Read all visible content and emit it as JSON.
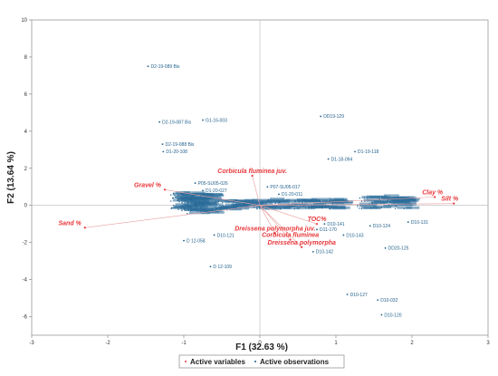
{
  "chart_data": {
    "type": "scatter",
    "xlabel": "F1 (32.63 %)",
    "ylabel": "F2 (13.64 %)",
    "xlim": [
      -3,
      3
    ],
    "ylim": [
      -7,
      10
    ],
    "xticks": [
      -3,
      -2,
      -1,
      0,
      1,
      2,
      3
    ],
    "yticks": [
      -6,
      -4,
      -2,
      0,
      2,
      4,
      6,
      8,
      10
    ],
    "grid": false,
    "legend": {
      "position": "bottom-center",
      "entries": [
        "Active variables",
        "Active observations"
      ]
    },
    "colors": {
      "variables": "#e8363a",
      "observations": "#1f5f8b"
    },
    "variables": [
      {
        "label": "Sand %",
        "x": -2.3,
        "y": -1.2
      },
      {
        "label": "Gravel %",
        "x": -1.25,
        "y": 0.85
      },
      {
        "label": "Corbicula fluminea juv.",
        "x": -0.1,
        "y": 1.6
      },
      {
        "label": "Clay %",
        "x": 2.3,
        "y": 0.45
      },
      {
        "label": "Silt %",
        "x": 2.55,
        "y": 0.1
      },
      {
        "label": "TOC%",
        "x": 0.75,
        "y": -1.0
      },
      {
        "label": "Dreissena polymorpha juv.",
        "x": 0.2,
        "y": -1.5
      },
      {
        "label": "Corbicula fluminea",
        "x": 0.4,
        "y": -1.85
      },
      {
        "label": "Dreissena polymorpha",
        "x": 0.55,
        "y": -2.25
      }
    ],
    "labeled_observations": [
      {
        "label": "D2-19-089 Bis",
        "x": -1.47,
        "y": 7.5
      },
      {
        "label": "D2-19-087 Bis",
        "x": -1.32,
        "y": 4.5
      },
      {
        "label": "G1-16-003",
        "x": -0.75,
        "y": 4.6
      },
      {
        "label": "D2-19-088 Bis",
        "x": -1.28,
        "y": 3.3
      },
      {
        "label": "D1-20-108",
        "x": -1.27,
        "y": 2.9
      },
      {
        "label": "DD19-129",
        "x": 0.8,
        "y": 4.8
      },
      {
        "label": "D1-19-118",
        "x": 1.25,
        "y": 2.9
      },
      {
        "label": "D1-18-094",
        "x": 0.9,
        "y": 2.5
      },
      {
        "label": "P07-SU05-017",
        "x": 0.1,
        "y": 1.0
      },
      {
        "label": "D1-20-011",
        "x": 0.25,
        "y": 0.6
      },
      {
        "label": "P05-SU05-026",
        "x": -0.85,
        "y": 1.2
      },
      {
        "label": "D1-20-027",
        "x": -0.75,
        "y": 0.8
      },
      {
        "label": "D10-121",
        "x": -0.6,
        "y": -1.6
      },
      {
        "label": "D 12-058",
        "x": -1.0,
        "y": -1.9
      },
      {
        "label": "D 12-109",
        "x": -0.65,
        "y": -3.3
      },
      {
        "label": "D11-170",
        "x": 0.75,
        "y": -1.3
      },
      {
        "label": "D10-141",
        "x": 0.85,
        "y": -1.0
      },
      {
        "label": "D10-142",
        "x": 0.7,
        "y": -2.5
      },
      {
        "label": "D10-143",
        "x": 1.1,
        "y": -1.6
      },
      {
        "label": "D10-124",
        "x": 1.45,
        "y": -1.1
      },
      {
        "label": "D10-131",
        "x": 1.95,
        "y": -0.9
      },
      {
        "label": "DD20-125",
        "x": 1.65,
        "y": -2.3
      },
      {
        "label": "D10-127",
        "x": 1.15,
        "y": -4.8
      },
      {
        "label": "D10-032",
        "x": 1.55,
        "y": -5.1
      },
      {
        "label": "D10-120",
        "x": 1.6,
        "y": -5.9
      }
    ]
  }
}
